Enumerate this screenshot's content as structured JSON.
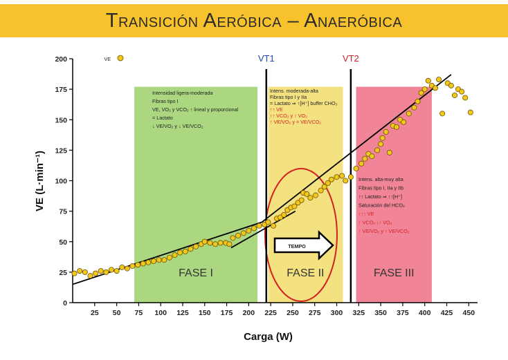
{
  "page": {
    "title": "Transición Aeróbica – Anaeróbica"
  },
  "colors": {
    "banner": "#f7c22b",
    "phase1": "#9bd06a",
    "phase2": "#f2dc6a",
    "phase3": "#ef6f84",
    "vt1": "#2244aa",
    "vt2": "#c8202a",
    "marker": "#f4c71c",
    "ellipse": "#d32020"
  },
  "chart_data": {
    "type": "scatter",
    "title": "",
    "xlabel": "Carga (W)",
    "ylabel": "VE (L·min⁻¹)",
    "xlim": [
      0,
      460
    ],
    "ylim": [
      0,
      200
    ],
    "x_ticks": [
      25,
      50,
      75,
      100,
      125,
      150,
      175,
      200,
      225,
      250,
      275,
      300,
      325,
      350,
      375,
      400,
      425,
      450
    ],
    "y_ticks": [
      0,
      25,
      50,
      75,
      100,
      125,
      150,
      175,
      200
    ],
    "legend": {
      "position": "top-left",
      "entries": [
        {
          "label": "VE",
          "marker": "circle"
        }
      ]
    },
    "series": [
      {
        "name": "VE",
        "points": [
          [
            2,
            24
          ],
          [
            8,
            26
          ],
          [
            14,
            25
          ],
          [
            20,
            22
          ],
          [
            26,
            24
          ],
          [
            32,
            26
          ],
          [
            38,
            25
          ],
          [
            44,
            27
          ],
          [
            50,
            26
          ],
          [
            56,
            29
          ],
          [
            62,
            28
          ],
          [
            68,
            30
          ],
          [
            74,
            31
          ],
          [
            80,
            32
          ],
          [
            86,
            33
          ],
          [
            92,
            34
          ],
          [
            98,
            35
          ],
          [
            104,
            35
          ],
          [
            110,
            37
          ],
          [
            116,
            39
          ],
          [
            122,
            41
          ],
          [
            128,
            42
          ],
          [
            134,
            44
          ],
          [
            140,
            46
          ],
          [
            146,
            48
          ],
          [
            150,
            50
          ],
          [
            156,
            49
          ],
          [
            162,
            48
          ],
          [
            168,
            49
          ],
          [
            174,
            49
          ],
          [
            178,
            48
          ],
          [
            182,
            53
          ],
          [
            188,
            55
          ],
          [
            194,
            57
          ],
          [
            200,
            59
          ],
          [
            206,
            61
          ],
          [
            212,
            63
          ],
          [
            218,
            64
          ],
          [
            222,
            66
          ],
          [
            228,
            63
          ],
          [
            232,
            69
          ],
          [
            236,
            70
          ],
          [
            240,
            72
          ],
          [
            244,
            76
          ],
          [
            248,
            78
          ],
          [
            252,
            79
          ],
          [
            256,
            82
          ],
          [
            260,
            84
          ],
          [
            262,
            90
          ],
          [
            266,
            89
          ],
          [
            270,
            86
          ],
          [
            276,
            88
          ],
          [
            282,
            92
          ],
          [
            286,
            95
          ],
          [
            290,
            98
          ],
          [
            294,
            101
          ],
          [
            300,
            103
          ],
          [
            306,
            104
          ],
          [
            310,
            100
          ],
          [
            316,
            103
          ],
          [
            322,
            110
          ],
          [
            328,
            114
          ],
          [
            332,
            118
          ],
          [
            336,
            122
          ],
          [
            340,
            120
          ],
          [
            346,
            125
          ],
          [
            350,
            130
          ],
          [
            352,
            135
          ],
          [
            356,
            140
          ],
          [
            360,
            123
          ],
          [
            364,
            145
          ],
          [
            368,
            144
          ],
          [
            372,
            150
          ],
          [
            376,
            148
          ],
          [
            382,
            155
          ],
          [
            388,
            160
          ],
          [
            392,
            165
          ],
          [
            396,
            172
          ],
          [
            400,
            175
          ],
          [
            404,
            182
          ],
          [
            408,
            178
          ],
          [
            412,
            176
          ],
          [
            416,
            183
          ],
          [
            420,
            155
          ],
          [
            426,
            180
          ],
          [
            430,
            178
          ],
          [
            434,
            170
          ],
          [
            438,
            175
          ],
          [
            442,
            173
          ],
          [
            446,
            168
          ],
          [
            452,
            156
          ]
        ]
      }
    ],
    "trend_lines": [
      {
        "from": [
          0,
          15
        ],
        "to": [
          215,
          66
        ]
      },
      {
        "from": [
          180,
          45
        ],
        "to": [
          253,
          75
        ]
      },
      {
        "from": [
          215,
          66
        ],
        "to": [
          430,
          187
        ]
      }
    ],
    "thresholds": [
      {
        "label": "VT1",
        "x": 220
      },
      {
        "label": "VT2",
        "x": 316
      }
    ],
    "phases": [
      {
        "label": "FASE I",
        "x_start": 70,
        "x_end": 210,
        "y_top": 177
      },
      {
        "label": "FASE II",
        "x_start": 222,
        "x_end": 307,
        "y_top": 177
      },
      {
        "label": "FASE III",
        "x_start": 322,
        "x_end": 408,
        "y_top": 177
      }
    ],
    "annotations": {
      "phase1": [
        "Intensidad ligera-moderada",
        "Fibras tipo I",
        "VE, VO₂ y VCO₂ ↑ lineal y proporcional",
        "= Lactato",
        "↓ VE/VO₂ y ↓ VE/VCO₂"
      ],
      "phase2": [
        "Intens. moderada-alta",
        "Fibras tipo I y IIa",
        "= Lactato ⇒ ↑[H⁺] buffer CHO₃",
        "↑↑ VE",
        "↑↑ VCO₂ y ↑ VO₂",
        "↑ VE/VO₂ y = VE/VCO₂"
      ],
      "phase3": [
        "Intens. alta-muy alta",
        "Fibras tipo I, IIa y IIb",
        "↑↑ Lactato ⇒ ↑↑[H⁺]",
        "Saturación del HCO₃",
        "↑↑↑ VE",
        "↑ VCO₂ ↓↑ VO₂",
        "↑ VE/VO₂ y ↑ VE/VCO₂"
      ],
      "arrow_label": "TEMPO"
    }
  }
}
